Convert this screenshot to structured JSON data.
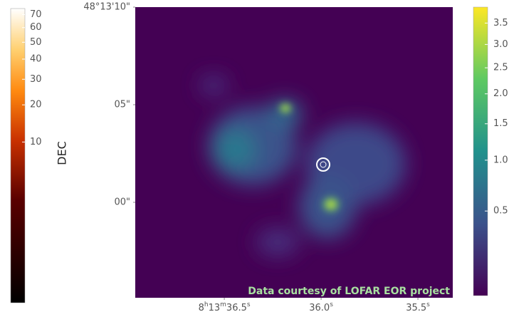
{
  "chart_data": {
    "type": "image",
    "ylabel": "DEC",
    "annotation": "Data courtesy of LOFAR EOR project",
    "xlim": [
      36.96,
      35.32
    ],
    "xticks": [
      {
        "value": 36.5,
        "label": "8h13m36.5s"
      },
      {
        "value": 36.0,
        "label": "36.0s"
      },
      {
        "value": 35.5,
        "label": "35.5s"
      }
    ],
    "ylim": [
      -4.89,
      10
    ],
    "yticks": [
      {
        "value": 0,
        "label": "00\""
      },
      {
        "value": 5,
        "label": "05\""
      },
      {
        "value": 10,
        "label": "48°13'10\""
      }
    ],
    "colorbars": [
      {
        "cmap": "afmhot",
        "clim": [
          0,
          75
        ],
        "scale": "power",
        "exponent": 0.3,
        "ticks": [
          10,
          20,
          30,
          40,
          50,
          60,
          70
        ]
      },
      {
        "cmap": "viridis",
        "clim": [
          0.18,
          3.9
        ],
        "scale": "sqrt",
        "ticks": [
          0.5,
          {
            "value": 1,
            "label": "1.0"
          },
          1.5,
          {
            "value": 2,
            "label": "2.0"
          },
          2.5,
          {
            "value": 3,
            "label": "3.0"
          },
          3.5
        ]
      }
    ]
  }
}
